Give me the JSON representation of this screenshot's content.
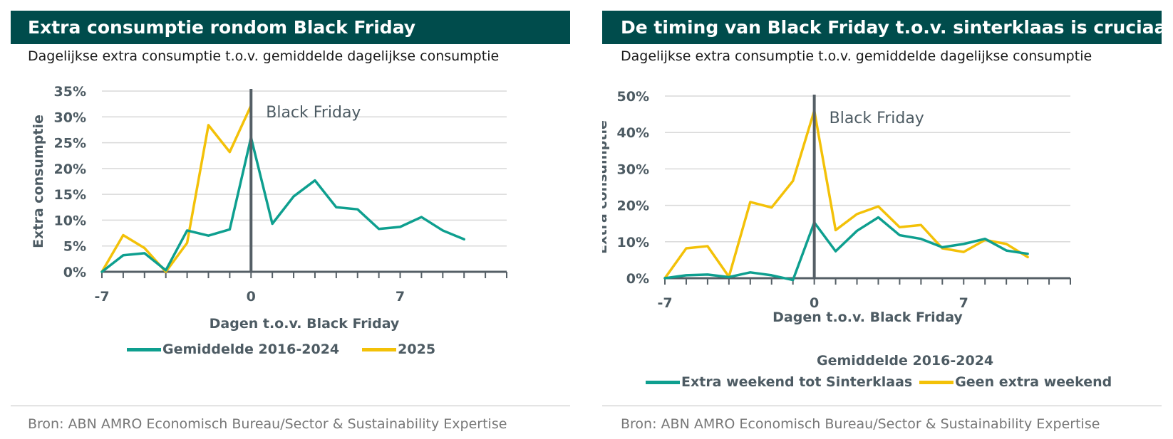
{
  "colors": {
    "header_bg": "#004c4c",
    "teal": "#0e9f8f",
    "gold": "#f3c108",
    "axis": "#555f66",
    "grid": "#d9d9d9",
    "label": "#4d5b63"
  },
  "source_text": "Bron: ABN AMRO Economisch Bureau/Sector & Sustainability Expertise",
  "chart_data": [
    {
      "type": "line",
      "title": "Extra consumptie rondom Black Friday",
      "subtitle": "Dagelijkse extra consumptie t.o.v. gemiddelde dagelijkse consumptie",
      "xlabel": "Dagen t.o.v. Black Friday",
      "ylabel": "Extra consumptie",
      "xlim": [
        -7,
        12
      ],
      "ylim": [
        0,
        35
      ],
      "xticks": [
        -7,
        0,
        7
      ],
      "yticks": [
        0,
        5,
        10,
        15,
        20,
        25,
        30,
        35
      ],
      "annotation": "Black Friday",
      "legend_title": "",
      "legend_position": "bottom",
      "grid": true,
      "series": [
        {
          "name": "Gemiddelde 2016-2024",
          "color": "#0e9f8f",
          "x": [
            -7,
            -6,
            -5,
            -4,
            -3,
            -2,
            -1,
            0,
            1,
            2,
            3,
            4,
            5,
            6,
            7,
            8,
            9,
            10
          ],
          "y": [
            0,
            3.2,
            3.6,
            0.3,
            8,
            7,
            8.2,
            26,
            9.3,
            14.6,
            17.7,
            12.5,
            12.1,
            8.3,
            8.7,
            10.6,
            8,
            6.3
          ]
        },
        {
          "name": "2025",
          "color": "#f3c108",
          "x": [
            -7,
            -6,
            -5,
            -4,
            -3,
            -2,
            -1,
            0
          ],
          "y": [
            0,
            7.1,
            4.6,
            0,
            5.6,
            28.4,
            23.2,
            32.2
          ]
        }
      ]
    },
    {
      "type": "line",
      "title": "De timing van Black Friday t.o.v. sinterklaas is cruciaal",
      "subtitle": "Dagelijkse extra consumptie t.o.v. gemiddelde dagelijkse consumptie",
      "xlabel": "Dagen t.o.v. Black Friday",
      "ylabel": "Extra consumptie",
      "xlim": [
        -7,
        12
      ],
      "ylim": [
        0,
        50
      ],
      "xticks": [
        -7,
        0,
        7
      ],
      "yticks": [
        0,
        10,
        20,
        30,
        40,
        50
      ],
      "annotation": "Black Friday",
      "legend_title": "Gemiddelde 2016-2024",
      "legend_position": "bottom",
      "grid": true,
      "series": [
        {
          "name": "Extra weekend tot Sinterklaas",
          "color": "#0e9f8f",
          "x": [
            -7,
            -6,
            -5,
            -4,
            -3,
            -2,
            -1,
            0,
            1,
            2,
            3,
            4,
            5,
            6,
            7,
            8,
            9,
            10
          ],
          "y": [
            0,
            0.8,
            1,
            0.3,
            1.6,
            0.8,
            -0.5,
            15.3,
            7.4,
            13,
            16.7,
            11.8,
            10.8,
            8.5,
            9.4,
            10.8,
            7.6,
            6.7
          ]
        },
        {
          "name": "Geen extra weekend",
          "color": "#f3c108",
          "x": [
            -7,
            -6,
            -5,
            -4,
            -3,
            -2,
            -1,
            0,
            1,
            2,
            3,
            4,
            5,
            6,
            7,
            8,
            9,
            10
          ],
          "y": [
            0,
            8.2,
            8.8,
            0.4,
            20.9,
            19.4,
            26.7,
            46,
            13.2,
            17.6,
            19.7,
            14,
            14.6,
            8.2,
            7.2,
            10.5,
            9.4,
            5.8
          ]
        }
      ]
    }
  ]
}
